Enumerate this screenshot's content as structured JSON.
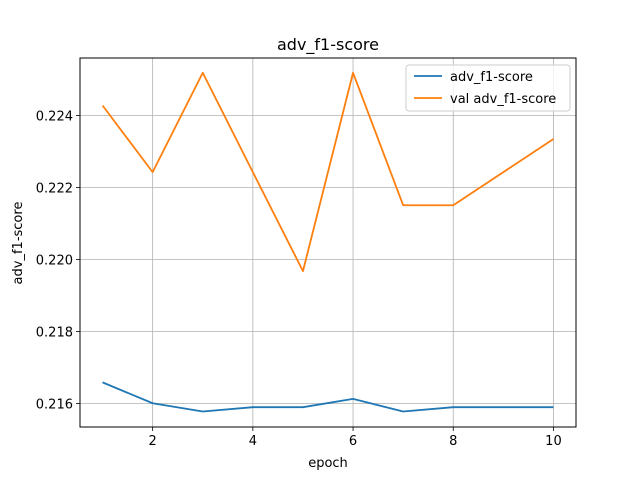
{
  "chart_data": {
    "type": "line",
    "title": "adv_f1-score",
    "xlabel": "epoch",
    "ylabel": "adv_f1-score",
    "x": [
      1,
      2,
      3,
      4,
      5,
      6,
      7,
      8,
      9,
      10
    ],
    "xlim": [
      0.55,
      10.45
    ],
    "ylim": [
      0.21535,
      0.2256
    ],
    "xticks": [
      2,
      4,
      6,
      8,
      10
    ],
    "xtick_labels": [
      "2",
      "4",
      "6",
      "8",
      "10"
    ],
    "yticks": [
      0.216,
      0.218,
      0.22,
      0.222,
      0.224
    ],
    "ytick_labels": [
      "0.216",
      "0.218",
      "0.220",
      "0.222",
      "0.224"
    ],
    "grid": true,
    "legend_position": "top-right",
    "series": [
      {
        "name": "adv_f1-score",
        "color": "#1f77b4",
        "values": [
          0.21659,
          0.21601,
          0.21578,
          0.2159,
          0.2159,
          0.21613,
          0.21578,
          0.2159,
          0.2159,
          0.2159
        ]
      },
      {
        "name": "val adv_f1-score",
        "color": "#ff7f0e",
        "values": [
          0.22428,
          0.22243,
          0.22519,
          0.22243,
          0.21968,
          0.22519,
          0.22151,
          0.22151,
          0.22243,
          0.22335
        ]
      }
    ]
  }
}
